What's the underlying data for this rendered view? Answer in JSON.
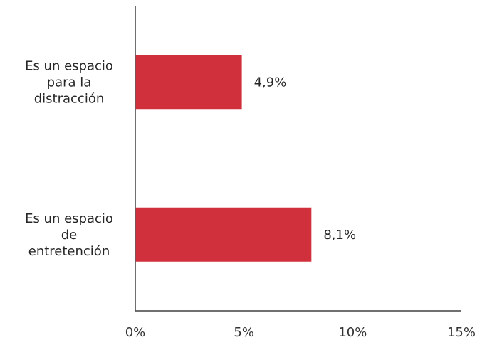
{
  "chart_data": {
    "type": "bar",
    "orientation": "horizontal",
    "categories": [
      [
        "Es un espacio",
        "para la",
        "distracción"
      ],
      [
        "Es un espacio",
        "de",
        "entretención"
      ]
    ],
    "values": [
      4.9,
      8.1
    ],
    "data_labels": [
      "4,9%",
      "8,1%"
    ],
    "xlim": [
      0,
      15
    ],
    "x_ticks": [
      0,
      5,
      10,
      15
    ],
    "x_tick_labels": [
      "0%",
      "5%",
      "10%",
      "15%"
    ],
    "grid": false,
    "legend": "none",
    "bar_color": "#d0303c",
    "title": "",
    "xlabel": "",
    "ylabel": ""
  }
}
